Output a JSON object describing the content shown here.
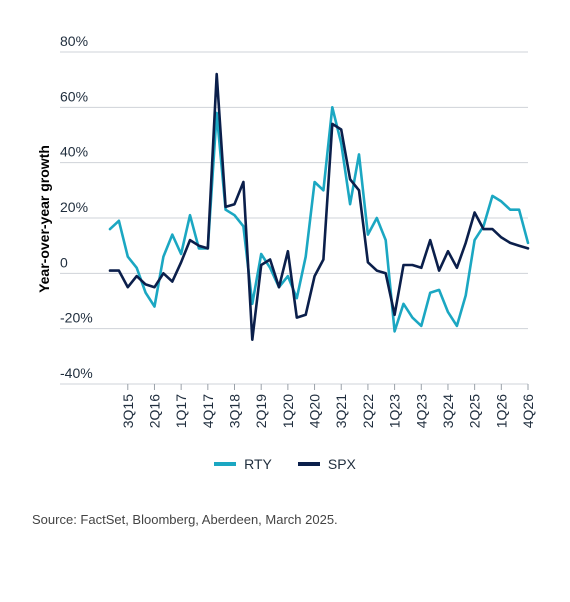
{
  "chart_data": {
    "type": "line",
    "ylabel": "Year-over-year growth",
    "ylim": [
      -40,
      80
    ],
    "yticks": [
      -40,
      -20,
      0,
      20,
      40,
      60,
      80
    ],
    "ytick_labels": [
      "-40%",
      "-20%",
      "0",
      "20%",
      "40%",
      "60%",
      "80%"
    ],
    "xtick_labels": [
      "3Q15",
      "2Q16",
      "1Q17",
      "4Q17",
      "3Q18",
      "2Q19",
      "1Q20",
      "4Q20",
      "3Q21",
      "2Q22",
      "1Q23",
      "4Q23",
      "3Q24",
      "2Q25",
      "1Q26",
      "4Q26"
    ],
    "x": [
      "1Q15",
      "2Q15",
      "3Q15",
      "4Q15",
      "1Q16",
      "2Q16",
      "3Q16",
      "4Q16",
      "1Q17",
      "2Q17",
      "3Q17",
      "4Q17",
      "1Q18",
      "2Q18",
      "3Q18",
      "4Q18",
      "1Q19",
      "2Q19",
      "3Q19",
      "4Q19",
      "1Q20",
      "2Q20",
      "3Q20",
      "4Q20",
      "1Q21",
      "2Q21",
      "3Q21",
      "4Q21",
      "1Q22",
      "2Q22",
      "3Q22",
      "4Q22",
      "1Q23",
      "2Q23",
      "3Q23",
      "4Q23",
      "1Q24",
      "2Q24",
      "3Q24",
      "4Q24",
      "1Q25",
      "2Q25",
      "3Q25",
      "4Q25",
      "1Q26",
      "2Q26",
      "3Q26",
      "4Q26"
    ],
    "series": [
      {
        "name": "RTY",
        "color": "#1ba7c2",
        "values": [
          16,
          19,
          6,
          2,
          -7,
          -12,
          6,
          14,
          7,
          21,
          9,
          9,
          58,
          23,
          21,
          17,
          -11,
          7,
          2,
          -5,
          -1,
          -9,
          6,
          33,
          30,
          60,
          47,
          25,
          43,
          14,
          20,
          12,
          -21,
          -11,
          -16,
          -19,
          -7,
          -6,
          -14,
          -19,
          -8,
          12,
          17,
          28,
          26,
          23,
          23,
          11
        ]
      },
      {
        "name": "SPX",
        "color": "#0b1f4b",
        "values": [
          1,
          1,
          -5,
          -1,
          -4,
          -5,
          0,
          -3,
          4,
          12,
          10,
          9,
          72,
          24,
          25,
          33,
          -24,
          3,
          5,
          -5,
          8,
          -16,
          -15,
          -1,
          5,
          54,
          52,
          34,
          30,
          4,
          1,
          0,
          -15,
          3,
          3,
          2,
          12,
          1,
          8,
          2,
          11,
          22,
          16,
          16,
          13,
          11,
          10,
          9
        ]
      }
    ],
    "legend_position": "bottom-center",
    "grid": "horizontal"
  },
  "legend": {
    "rty": "RTY",
    "spx": "SPX"
  },
  "source": "Source: FactSet, Bloomberg, Aberdeen, March 2025."
}
